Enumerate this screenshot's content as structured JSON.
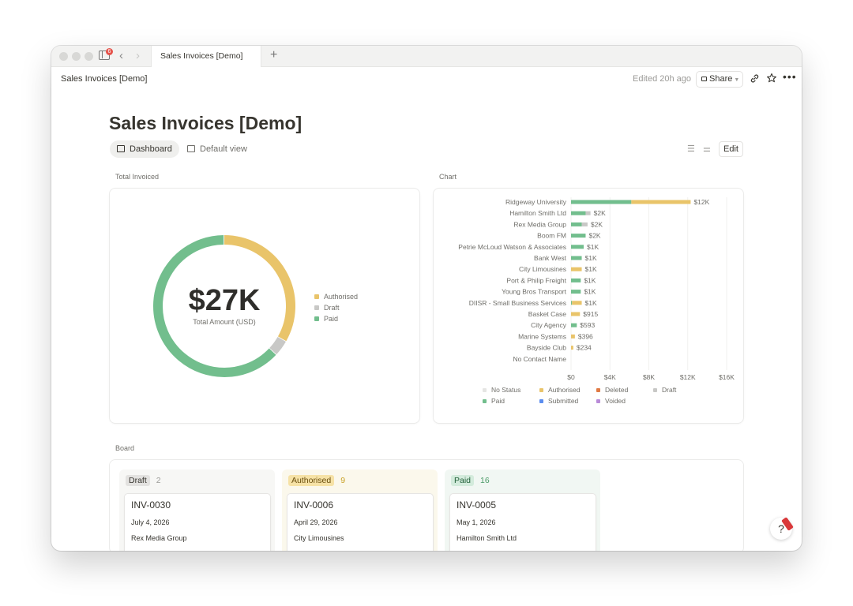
{
  "browser": {
    "tab_title": "Sales Invoices [Demo]",
    "badge_count": "6"
  },
  "topbar": {
    "breadcrumb": "Sales Invoices [Demo]",
    "edited": "Edited 20h ago",
    "share_label": "Share"
  },
  "page": {
    "title": "Sales Invoices [Demo]",
    "views": [
      {
        "label": "Dashboard",
        "icon": "dashboard-icon",
        "active": true
      },
      {
        "label": "Default view",
        "icon": "table-icon",
        "active": false
      }
    ],
    "edit_label": "Edit"
  },
  "total_invoiced": {
    "section_label": "Total Invoiced",
    "value": "$27K",
    "sublabel": "Total Amount (USD)",
    "legend": [
      {
        "label": "Authorised",
        "color": "#e9c46a"
      },
      {
        "label": "Draft",
        "color": "#c8c8c6"
      },
      {
        "label": "Paid",
        "color": "#72be8d"
      }
    ]
  },
  "chart_section_label": "Chart",
  "colors": {
    "paid": "#72be8d",
    "authorised": "#e9c46a",
    "draft": "#c8c8c6",
    "no_status": "#e5e5e3",
    "deleted": "#e07a44",
    "submitted": "#5b8def",
    "voided": "#b98bd8"
  },
  "chart_data": [
    {
      "type": "pie",
      "categories": [
        "Authorised",
        "Draft",
        "Paid"
      ],
      "values": [
        9.0,
        1.0,
        17.0
      ],
      "title": "Total Invoiced"
    },
    {
      "type": "bar",
      "orientation": "horizontal",
      "stacked": true,
      "title": "Chart",
      "categories": [
        "Ridgeway University",
        "Hamilton Smith Ltd",
        "Rex Media Group",
        "Boom FM",
        "Petrie McLoud Watson & Associates",
        "Bank West",
        "City Limousines",
        "Port & Philip Freight",
        "Young Bros Transport",
        "DIISR - Small Business Services",
        "Basket Case",
        "City Agency",
        "Marine Systems",
        "Bayside Club",
        "No Contact Name"
      ],
      "totals_labels": [
        "$12K",
        "$2K",
        "$2K",
        "$2K",
        "$1K",
        "$1K",
        "$1K",
        "$1K",
        "$1K",
        "$1K",
        "$915",
        "$593",
        "$396",
        "$234",
        ""
      ],
      "series": [
        {
          "name": "Paid",
          "values": [
            6200,
            1500,
            1100,
            1500,
            1300,
            1100,
            0,
            1000,
            1000,
            100,
            0,
            593,
            0,
            0,
            0
          ]
        },
        {
          "name": "Authorised",
          "values": [
            6100,
            0,
            0,
            0,
            0,
            0,
            1100,
            0,
            0,
            1000,
            915,
            0,
            396,
            234,
            0
          ]
        },
        {
          "name": "Draft",
          "values": [
            0,
            500,
            600,
            0,
            0,
            0,
            0,
            0,
            0,
            0,
            0,
            0,
            0,
            0,
            0
          ]
        }
      ],
      "xticks": [
        "$0",
        "$4K",
        "$8K",
        "$12K",
        "$16K"
      ],
      "xlim": [
        0,
        16000
      ],
      "grid": true,
      "legend_position": "bottom",
      "legend": [
        {
          "label": "No Status",
          "key": "no_status"
        },
        {
          "label": "Authorised",
          "key": "authorised"
        },
        {
          "label": "Deleted",
          "key": "deleted"
        },
        {
          "label": "Draft",
          "key": "draft"
        },
        {
          "label": "Paid",
          "key": "paid"
        },
        {
          "label": "Submitted",
          "key": "submitted"
        },
        {
          "label": "Voided",
          "key": "voided"
        }
      ]
    }
  ],
  "board": {
    "section_label": "Board",
    "columns": [
      {
        "label": "Draft",
        "count": "2",
        "bg": "#f7f7f5",
        "pill_bg": "#e3e2e0",
        "pill_color": "#37352f",
        "count_color": "#9b9a97",
        "card": {
          "number": "INV-0030",
          "date": "July 4, 2026",
          "customer": "Rex Media Group"
        }
      },
      {
        "label": "Authorised",
        "count": "9",
        "bg": "#fbf8ec",
        "pill_bg": "#f6e2a6",
        "pill_color": "#6b4f0e",
        "count_color": "#c9a227",
        "card": {
          "number": "INV-0006",
          "date": "April 29, 2026",
          "customer": "City Limousines"
        }
      },
      {
        "label": "Paid",
        "count": "16",
        "bg": "#f1f7f3",
        "pill_bg": "#d3ebdc",
        "pill_color": "#23613a",
        "count_color": "#4c9b68",
        "card": {
          "number": "INV-0005",
          "date": "May 1, 2026",
          "customer": "Hamilton Smith Ltd"
        }
      }
    ]
  }
}
